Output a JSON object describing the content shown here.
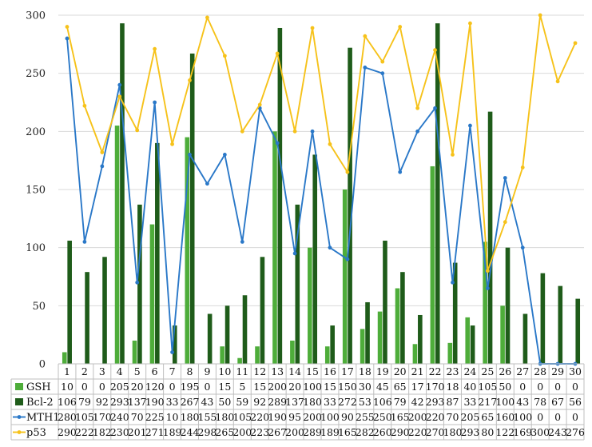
{
  "chart_data": {
    "type": "bar",
    "categories": [
      "1",
      "2",
      "3",
      "4",
      "5",
      "6",
      "7",
      "8",
      "9",
      "10",
      "11",
      "12",
      "13",
      "14",
      "15",
      "16",
      "17",
      "18",
      "19",
      "20",
      "21",
      "22",
      "23",
      "24",
      "25",
      "26",
      "27",
      "28",
      "29",
      "30"
    ],
    "ylim": [
      0,
      300
    ],
    "yticks": [
      0,
      50,
      100,
      150,
      200,
      250,
      300
    ],
    "grid": true,
    "legend": "data-table",
    "series": [
      {
        "name": "GSH",
        "kind": "bar",
        "color": "#4ead3a",
        "values": [
          10,
          0,
          0,
          205,
          20,
          120,
          0,
          195,
          0,
          15,
          5,
          15,
          200,
          20,
          100,
          15,
          150,
          30,
          45,
          65,
          17,
          170,
          18,
          40,
          105,
          50,
          0,
          0,
          0,
          0
        ]
      },
      {
        "name": "Bcl-2",
        "kind": "bar",
        "color": "#1f5c1a",
        "values": [
          106,
          79,
          92,
          293,
          137,
          190,
          33,
          267,
          43,
          50,
          59,
          92,
          289,
          137,
          180,
          33,
          272,
          53,
          106,
          79,
          42,
          293,
          87,
          33,
          217,
          100,
          43,
          78,
          67,
          56
        ]
      },
      {
        "name": "MTH1",
        "kind": "line",
        "color": "#2a78c8",
        "values": [
          280,
          105,
          170,
          240,
          70,
          225,
          10,
          180,
          155,
          180,
          105,
          220,
          190,
          95,
          200,
          100,
          90,
          255,
          250,
          165,
          200,
          220,
          70,
          205,
          65,
          160,
          100,
          0,
          0,
          0
        ]
      },
      {
        "name": "p53",
        "kind": "line",
        "color": "#f6c21a",
        "values": [
          290,
          222,
          182,
          230,
          201,
          271,
          189,
          244,
          298,
          265,
          200,
          223,
          267,
          200,
          289,
          189,
          165,
          282,
          260,
          290,
          220,
          270,
          180,
          293,
          80,
          122,
          169,
          300,
          243,
          276
        ]
      }
    ]
  }
}
